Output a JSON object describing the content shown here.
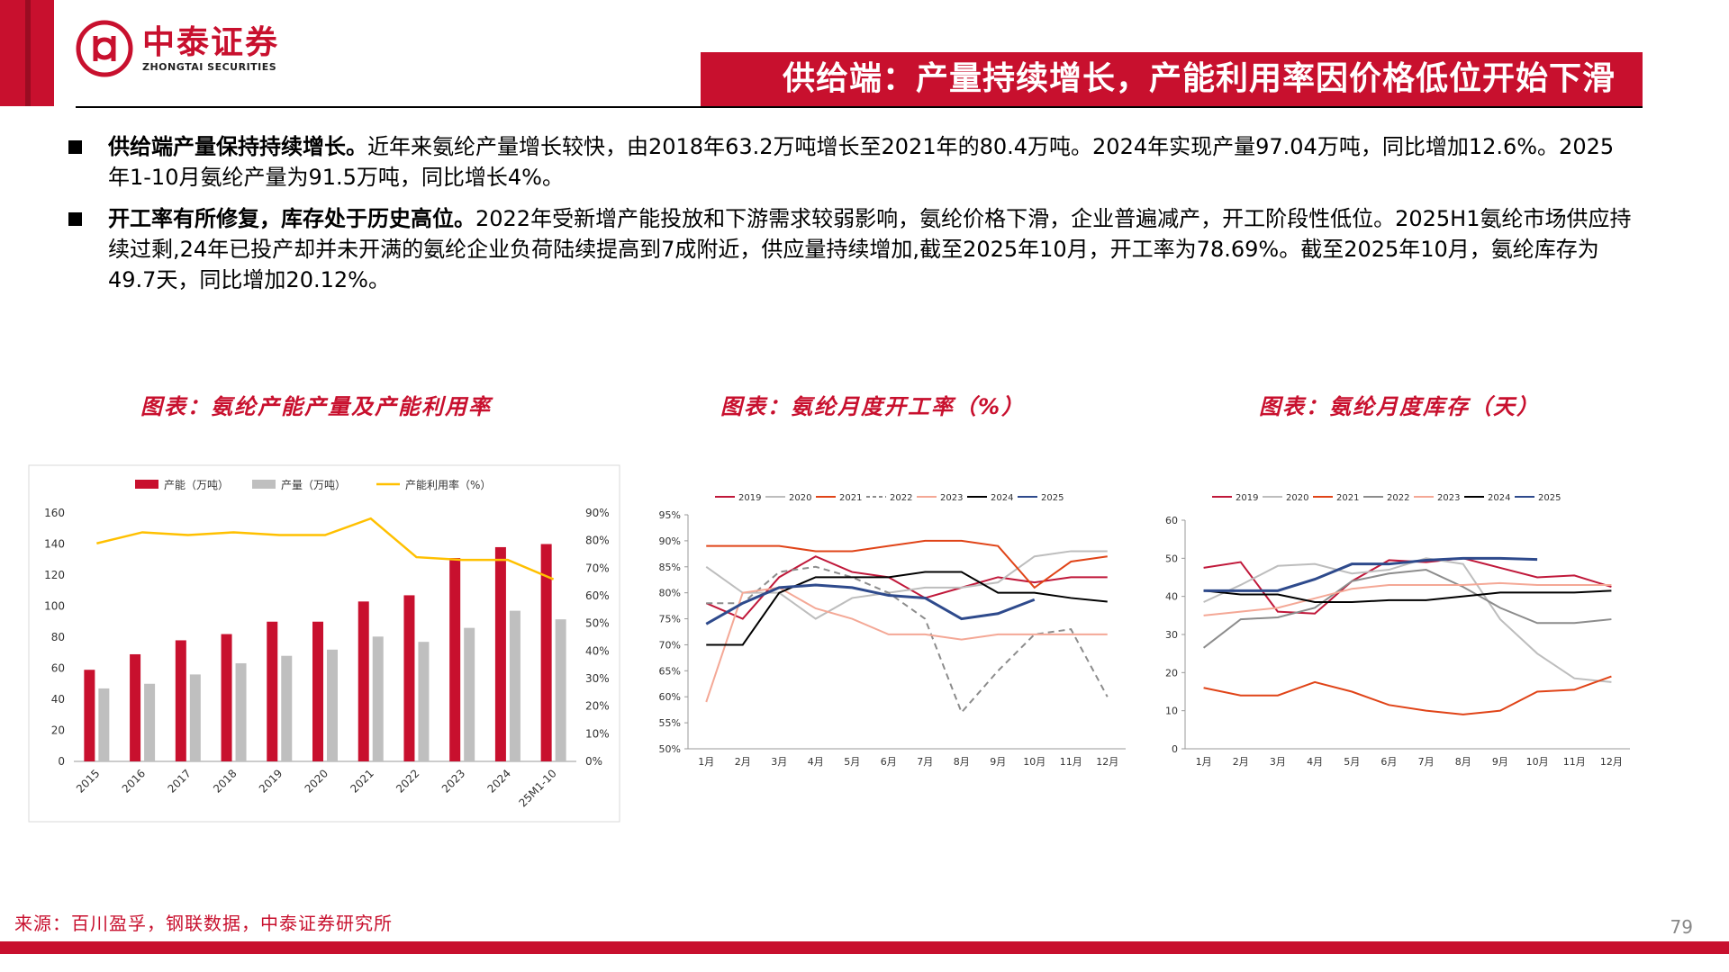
{
  "header": {
    "logo_cn": "中泰证券",
    "logo_en": "ZHONGTAI SECURITIES",
    "title": "供给端：产量持续增长，产能利用率因价格低位开始下滑"
  },
  "bullets": [
    {
      "lead": "供给端产量保持持续增长。",
      "text": "近年来氨纶产量增长较快，由2018年63.2万吨增长至2021年的80.4万吨。2024年实现产量97.04万吨，同比增加12.6%。2025年1-10月氨纶产量为91.5万吨，同比增长4%。"
    },
    {
      "lead": "开工率有所修复，库存处于历史高位。",
      "text": "2022年受新增产能投放和下游需求较弱影响，氨纶价格下滑，企业普遍减产，开工阶段性低位。2025H1氨纶市场供应持续过剩,24年已投产却并未开满的氨纶企业负荷陆续提高到7成附近，供应量持续增加,截至2025年10月，开工率为78.69%。截至2025年10月，氨纶库存为49.7天，同比增加20.12%。"
    }
  ],
  "chart_titles": [
    "图表：氨纶产能产量及产能利用率",
    "图表：氨纶月度开工率（%）",
    "图表：氨纶月度库存（天）"
  ],
  "source": "来源：百川盈孚，钢联数据，中泰证券研究所",
  "page_number": "79",
  "colors": {
    "brand": "#c8102e",
    "bar_capacity": "#c8102e",
    "bar_output": "#bfbfbf",
    "util_line": "#ffc000"
  },
  "chart_data": [
    {
      "type": "bar",
      "categories": [
        "2015",
        "2016",
        "2017",
        "2018",
        "2019",
        "2020",
        "2021",
        "2022",
        "2023",
        "2024",
        "25M1-10"
      ],
      "series": [
        {
          "name": "产能（万吨）",
          "type": "bar",
          "axis": "left",
          "values": [
            59,
            69,
            78,
            82,
            90,
            90,
            103,
            107,
            131,
            138,
            140
          ]
        },
        {
          "name": "产量（万吨）",
          "type": "bar",
          "axis": "left",
          "values": [
            47,
            50,
            56,
            63.2,
            68,
            72,
            80.4,
            77,
            86,
            97.04,
            91.5
          ]
        },
        {
          "name": "产能利用率（%）",
          "type": "line",
          "axis": "right",
          "values": [
            79,
            83,
            82,
            83,
            82,
            82,
            88,
            74,
            73,
            73,
            66
          ]
        }
      ],
      "ylim_left": [
        0,
        160
      ],
      "yticks_left": [
        "0",
        "20",
        "40",
        "60",
        "80",
        "100",
        "120",
        "140",
        "160"
      ],
      "ylim_right": [
        0,
        90
      ],
      "yticks_right": [
        "0%",
        "10%",
        "20%",
        "30%",
        "40%",
        "50%",
        "60%",
        "70%",
        "80%",
        "90%"
      ],
      "legend": "top"
    },
    {
      "type": "line",
      "categories": [
        "1月",
        "2月",
        "3月",
        "4月",
        "5月",
        "6月",
        "7月",
        "8月",
        "9月",
        "10月",
        "11月",
        "12月"
      ],
      "series": [
        {
          "name": "2019",
          "color": "#c0183a",
          "values": [
            78,
            75,
            83,
            87,
            84,
            83,
            79,
            81,
            83,
            82,
            83,
            83
          ]
        },
        {
          "name": "2020",
          "color": "#bdbdbd",
          "values": [
            85,
            80,
            80,
            75,
            79,
            80,
            81,
            81,
            82,
            87,
            88,
            88
          ]
        },
        {
          "name": "2021",
          "color": "#e04418",
          "values": [
            89,
            89,
            89,
            88,
            88,
            89,
            90,
            90,
            89,
            81,
            86,
            87
          ]
        },
        {
          "name": "2022",
          "color": "#8c8c8c",
          "dash": true,
          "values": [
            78,
            78,
            84,
            85,
            83,
            80,
            75,
            57,
            65,
            72,
            73,
            60
          ]
        },
        {
          "name": "2023",
          "color": "#f4a896",
          "values": [
            59,
            80,
            81,
            77,
            75,
            72,
            72,
            71,
            72,
            72,
            72,
            72
          ]
        },
        {
          "name": "2024",
          "color": "#000000",
          "values": [
            70,
            70,
            80,
            83,
            83,
            83,
            84,
            84,
            80,
            80,
            79,
            78.3
          ]
        },
        {
          "name": "2025",
          "color": "#2e4a8c",
          "values": [
            74,
            78,
            81,
            81.5,
            81,
            79.5,
            79,
            75,
            76,
            78.69,
            null,
            null
          ]
        }
      ],
      "ylim": [
        50,
        95
      ],
      "yticks": [
        "50%",
        "55%",
        "60%",
        "65%",
        "70%",
        "75%",
        "80%",
        "85%",
        "90%",
        "95%"
      ],
      "legend": "top"
    },
    {
      "type": "line",
      "categories": [
        "1月",
        "2月",
        "3月",
        "4月",
        "5月",
        "6月",
        "7月",
        "8月",
        "9月",
        "10月",
        "11月",
        "12月"
      ],
      "series": [
        {
          "name": "2019",
          "color": "#c0183a",
          "values": [
            47.5,
            49,
            36,
            35.5,
            44,
            49.5,
            49,
            50,
            47.5,
            45,
            45.5,
            42.5
          ]
        },
        {
          "name": "2020",
          "color": "#bdbdbd",
          "values": [
            38.5,
            43,
            48,
            48.5,
            46,
            47,
            50,
            48.5,
            34,
            25,
            18.5,
            17.5
          ]
        },
        {
          "name": "2021",
          "color": "#e04418",
          "values": [
            16,
            14,
            14,
            17.5,
            15,
            11.5,
            10,
            9,
            10,
            15,
            15.5,
            19
          ]
        },
        {
          "name": "2022",
          "color": "#8c8c8c",
          "values": [
            26.5,
            34,
            34.5,
            37,
            44,
            46,
            47,
            42.5,
            37,
            33,
            33,
            34
          ]
        },
        {
          "name": "2023",
          "color": "#f4a896",
          "values": [
            35,
            36,
            37,
            39.5,
            42,
            43,
            43,
            43,
            43.5,
            43,
            43,
            43
          ]
        },
        {
          "name": "2024",
          "color": "#000000",
          "values": [
            41.5,
            40.5,
            40.5,
            38.5,
            38.5,
            39,
            39,
            40,
            41,
            41,
            41,
            41.5
          ]
        },
        {
          "name": "2025",
          "color": "#2e4a8c",
          "values": [
            41.5,
            41.5,
            41.5,
            44.5,
            48.5,
            48.5,
            49.5,
            50,
            50,
            49.7,
            null,
            null
          ]
        }
      ],
      "ylim": [
        0,
        60
      ],
      "yticks": [
        "0",
        "10",
        "20",
        "30",
        "40",
        "50",
        "60"
      ],
      "legend": "top"
    }
  ]
}
